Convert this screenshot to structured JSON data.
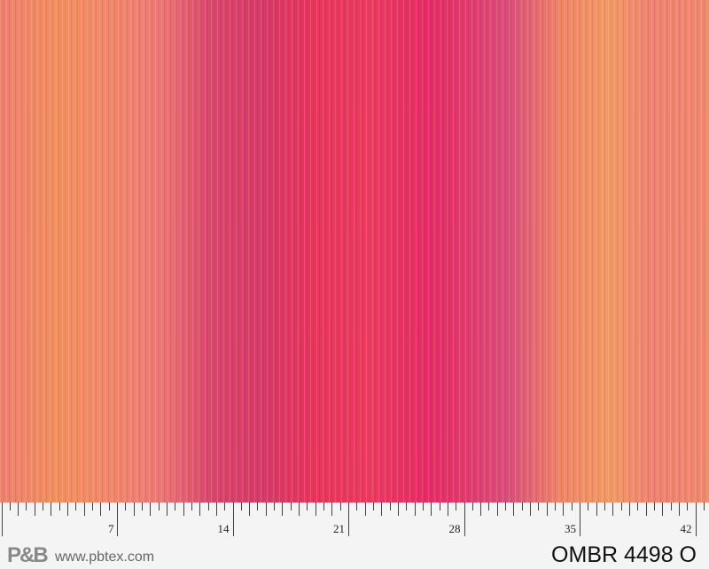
{
  "ruler": {
    "labels": [
      "7",
      "14",
      "21",
      "28",
      "35",
      "42"
    ]
  },
  "brand": {
    "logo": "P&B",
    "url": "www.pbtex.com"
  },
  "product": {
    "code": "OMBR 4498 O"
  },
  "colors": {
    "hot_pink": "#e8355c",
    "orange": "#f2905f",
    "magenta": "#d63a68"
  }
}
